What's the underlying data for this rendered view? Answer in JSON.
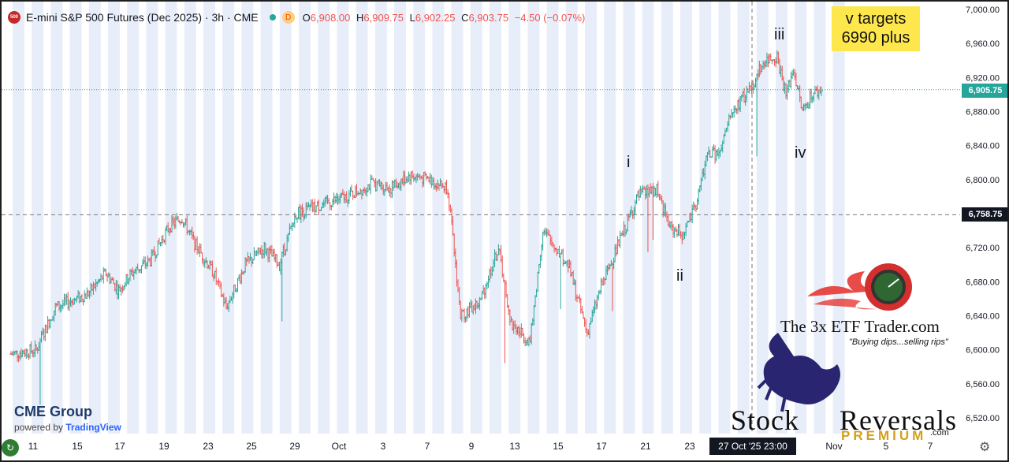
{
  "header": {
    "symbol_badge": "500",
    "title": "E-mini S&P 500 Futures (Dec 2025) · 3h · CME",
    "mode_badge": "D",
    "open_label": "O",
    "open": "6,908.00",
    "high_label": "H",
    "high": "6,909.75",
    "low_label": "L",
    "low": "6,902.25",
    "close_label": "C",
    "close": "6,903.75",
    "change": "−4.50 (−0.07%)"
  },
  "annotations": {
    "targets_line1": "v targets",
    "targets_line2": "6990 plus",
    "wave_i": "i",
    "wave_ii": "ii",
    "wave_iii": "iii",
    "wave_iv": "iv"
  },
  "price_tags": {
    "last_price": "6,905.75",
    "crosshair_price": "6,758.75"
  },
  "time_tag": "27 Oct '25  23:00",
  "branding": {
    "cme_group": "CME Group",
    "powered_by": "powered by",
    "tradingview": "TradingView",
    "tv_icon": "tv-logo-icon",
    "etf_title": "The 3x ETF Trader.com",
    "etf_tagline": "\"Buying dips...selling rips\"",
    "stock": "Stock",
    "reversals": "Reversals",
    "premium": "PREMIUM",
    "dotcom": ".com"
  },
  "colors": {
    "up": "#26a69a",
    "down": "#ef5350",
    "session_band": "#e8eef9",
    "last_price": "#26a69a",
    "crosshair_tag": "#131722"
  },
  "chart_data": {
    "type": "ohlc",
    "title": "E-mini S&P 500 Futures (Dec 2025) · 3h · CME",
    "ylim": [
      6500,
      7020
    ],
    "y_ticks": [
      6520,
      6560,
      6600,
      6640,
      6680,
      6720,
      6760,
      6800,
      6840,
      6880,
      6920,
      6960,
      7000
    ],
    "y_tick_labels": [
      "6,520.00",
      "6,560.00",
      "6,600.00",
      "6,640.00",
      "6,680.00",
      "6,720.00",
      "6,760.00",
      "6,800.00",
      "6,840.00",
      "6,880.00",
      "6,920.00",
      "6,960.00",
      "7,000.00"
    ],
    "x_tick_labels": [
      "11",
      "15",
      "17",
      "19",
      "23",
      "25",
      "29",
      "Oct",
      "3",
      "7",
      "9",
      "13",
      "15",
      "17",
      "21",
      "23",
      "27 Oct '25  23:00",
      "Nov",
      "5",
      "7"
    ],
    "path_points": [
      [
        0,
        6595
      ],
      [
        20,
        6600
      ],
      [
        35,
        6650
      ],
      [
        60,
        6665
      ],
      [
        75,
        6690
      ],
      [
        85,
        6670
      ],
      [
        95,
        6690
      ],
      [
        110,
        6705
      ],
      [
        125,
        6745
      ],
      [
        135,
        6755
      ],
      [
        145,
        6725
      ],
      [
        160,
        6690
      ],
      [
        170,
        6650
      ],
      [
        185,
        6700
      ],
      [
        200,
        6720
      ],
      [
        212,
        6700
      ],
      [
        225,
        6760
      ],
      [
        245,
        6770
      ],
      [
        265,
        6780
      ],
      [
        285,
        6795
      ],
      [
        300,
        6790
      ],
      [
        315,
        6805
      ],
      [
        330,
        6800
      ],
      [
        345,
        6790
      ],
      [
        355,
        6640
      ],
      [
        370,
        6655
      ],
      [
        385,
        6720
      ],
      [
        395,
        6630
      ],
      [
        410,
        6610
      ],
      [
        420,
        6740
      ],
      [
        440,
        6700
      ],
      [
        455,
        6620
      ],
      [
        465,
        6670
      ],
      [
        480,
        6725
      ],
      [
        495,
        6780
      ],
      [
        510,
        6790
      ],
      [
        520,
        6745
      ],
      [
        530,
        6735
      ],
      [
        540,
        6765
      ],
      [
        550,
        6830
      ],
      [
        560,
        6830
      ],
      [
        568,
        6875
      ],
      [
        585,
        6910
      ],
      [
        595,
        6940
      ],
      [
        605,
        6945
      ],
      [
        612,
        6900
      ],
      [
        618,
        6930
      ],
      [
        625,
        6880
      ],
      [
        632,
        6900
      ],
      [
        640,
        6905
      ]
    ],
    "last_price": 6905.75,
    "crosshair_price": 6758.75,
    "crosshair_time": "27 Oct '25 23:00",
    "wave_labels": [
      {
        "label": "i",
        "bar": 478,
        "price": 6810
      },
      {
        "label": "ii",
        "bar": 524,
        "price": 6690
      },
      {
        "label": "iii",
        "bar": 597,
        "price": 6965
      },
      {
        "label": "iv",
        "bar": 614,
        "price": 6850
      }
    ],
    "note": "v targets 6990 plus"
  }
}
